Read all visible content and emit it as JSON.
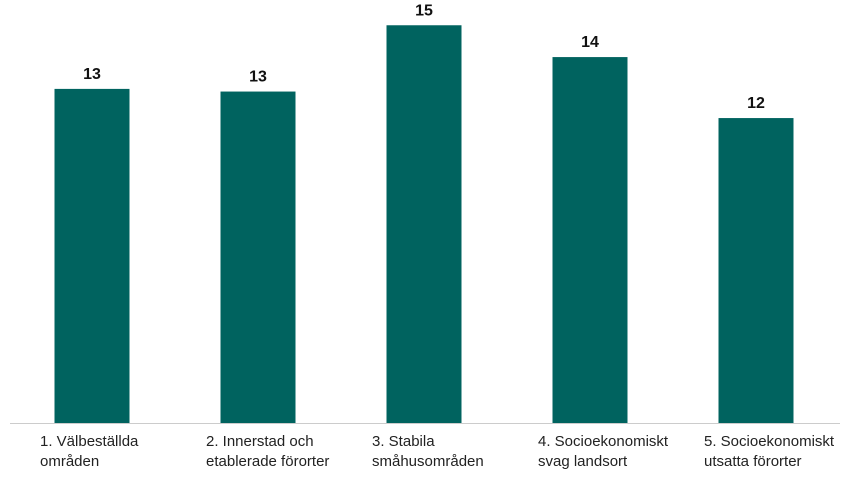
{
  "chart_data": {
    "type": "bar",
    "categories": [
      "1. Välbeställda områden",
      "2. Innerstad och etablerade förorter",
      "3. Stabila småhusområden",
      "4. Socioekonomiskt svag landsort",
      "5. Socioekonomiskt utsatta förorter"
    ],
    "values": [
      12.6,
      12.5,
      15.0,
      13.8,
      11.5
    ],
    "value_labels": [
      "13",
      "13",
      "15",
      "14",
      "12"
    ],
    "color": "#00635f",
    "ylim": [
      0,
      15.5
    ]
  }
}
